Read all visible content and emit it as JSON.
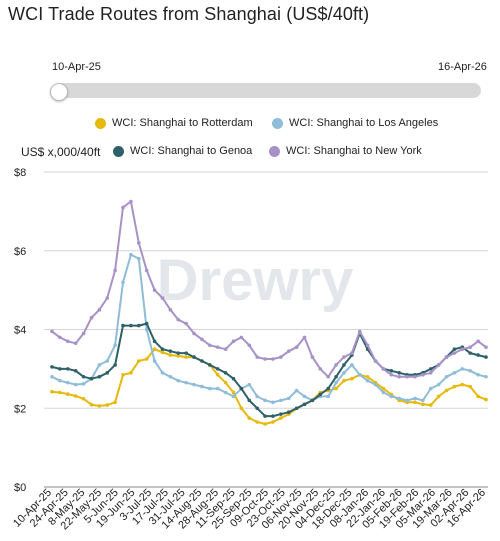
{
  "title": "WCI Trade Routes from Shanghai (US$/40ft)",
  "range_slider": {
    "start_label": "10-Apr-25",
    "end_label": "16-Apr-26"
  },
  "watermark": "Drewry",
  "chart_data": {
    "type": "line",
    "ylabel": "US$ x,000/40ft",
    "ylim": [
      0,
      8
    ],
    "y_ticks": [
      "$0",
      "$2",
      "$4",
      "$6",
      "$8"
    ],
    "grid": true,
    "legend_placement": "top",
    "x_tick_labels": [
      "10-Apr-25",
      "24-Apr-25",
      "8-May-25",
      "22-May-25",
      "5-Jun-25",
      "19-Jun-25",
      "3-Jul-25",
      "17-Jul-25",
      "31-Jul-25",
      "14-Aug-25",
      "28-Aug-25",
      "11-Sep-25",
      "25-Sep-25",
      "09-Oct-25",
      "23-Oct-25",
      "06-Nov-25",
      "20-Nov-25",
      "04-Dec-25",
      "18-Dec-25",
      "08-Jan-26",
      "22-Jan-26",
      "05-Feb-26",
      "19-Feb-26",
      "05-Mar-26",
      "19-Mar-26",
      "02-Apr-26",
      "16-Apr-26"
    ],
    "series": [
      {
        "name": "WCI: Shanghai to Rotterdam",
        "color": "#e6b90f",
        "values": [
          2.42,
          2.4,
          2.36,
          2.31,
          2.24,
          2.09,
          2.06,
          2.08,
          2.15,
          2.85,
          2.9,
          3.2,
          3.25,
          3.5,
          3.42,
          3.35,
          3.33,
          3.3,
          3.3,
          3.2,
          3.1,
          2.85,
          2.65,
          2.4,
          2.0,
          1.75,
          1.65,
          1.6,
          1.65,
          1.75,
          1.85,
          2.0,
          2.1,
          2.2,
          2.4,
          2.45,
          2.5,
          2.7,
          2.75,
          2.85,
          2.8,
          2.65,
          2.5,
          2.35,
          2.2,
          2.15,
          2.15,
          2.1,
          2.08,
          2.3,
          2.45,
          2.55,
          2.6,
          2.55,
          2.3,
          2.22
        ]
      },
      {
        "name": "WCI: Shanghai to Los Angeles",
        "color": "#8fbcd9",
        "values": [
          2.8,
          2.7,
          2.65,
          2.6,
          2.62,
          2.75,
          3.1,
          3.2,
          3.6,
          5.2,
          5.9,
          5.8,
          4.0,
          3.2,
          2.9,
          2.8,
          2.7,
          2.65,
          2.6,
          2.55,
          2.5,
          2.5,
          2.4,
          2.3,
          2.5,
          2.6,
          2.3,
          2.2,
          2.15,
          2.2,
          2.25,
          2.45,
          2.3,
          2.2,
          2.3,
          2.3,
          2.65,
          2.9,
          3.1,
          2.85,
          2.7,
          2.6,
          2.4,
          2.3,
          2.25,
          2.2,
          2.25,
          2.2,
          2.5,
          2.6,
          2.8,
          2.9,
          3.0,
          2.95,
          2.85,
          2.8
        ]
      },
      {
        "name": "WCI: Shanghai to Genoa",
        "color": "#2e6069",
        "values": [
          3.05,
          3.0,
          3.0,
          2.95,
          2.8,
          2.75,
          2.8,
          2.9,
          3.1,
          4.1,
          4.1,
          4.1,
          4.15,
          3.7,
          3.5,
          3.45,
          3.4,
          3.4,
          3.3,
          3.2,
          3.1,
          3.0,
          2.9,
          2.75,
          2.5,
          2.2,
          2.0,
          1.8,
          1.8,
          1.85,
          1.9,
          2.0,
          2.1,
          2.2,
          2.35,
          2.5,
          2.8,
          3.1,
          3.35,
          3.9,
          3.5,
          3.2,
          3.0,
          2.95,
          2.9,
          2.85,
          2.85,
          2.9,
          3.0,
          3.1,
          3.3,
          3.5,
          3.55,
          3.4,
          3.35,
          3.3
        ]
      },
      {
        "name": "WCI: Shanghai to New York",
        "color": "#a792c8",
        "values": [
          3.95,
          3.8,
          3.7,
          3.65,
          3.9,
          4.3,
          4.5,
          4.8,
          5.5,
          7.1,
          7.25,
          6.2,
          5.5,
          5.0,
          4.8,
          4.5,
          4.25,
          4.15,
          3.9,
          3.75,
          3.6,
          3.55,
          3.5,
          3.7,
          3.8,
          3.6,
          3.3,
          3.25,
          3.25,
          3.3,
          3.45,
          3.55,
          3.8,
          3.3,
          3.0,
          2.8,
          3.1,
          3.3,
          3.4,
          3.95,
          3.6,
          3.2,
          3.0,
          2.85,
          2.8,
          2.8,
          2.8,
          2.85,
          2.9,
          3.1,
          3.3,
          3.4,
          3.5,
          3.55,
          3.7,
          3.55
        ]
      }
    ]
  }
}
